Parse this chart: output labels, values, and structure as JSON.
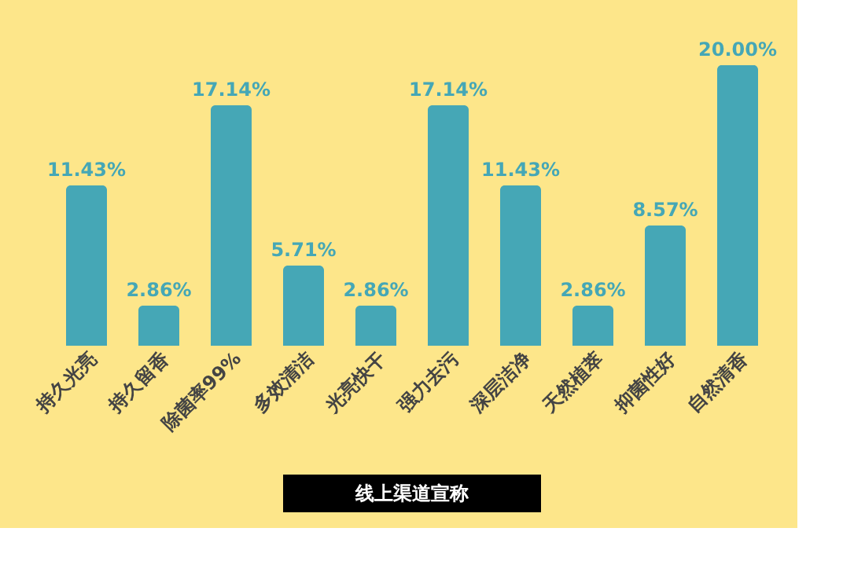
{
  "chart_data": {
    "type": "bar",
    "title": "线上渠道宣称",
    "categories": [
      "持久光亮",
      "持久留香",
      "除菌率99%",
      "多效清洁",
      "光亮快干",
      "强力去污",
      "深层洁净",
      "天然植萃",
      "抑菌性好",
      "自然清香"
    ],
    "values": [
      11.43,
      2.86,
      17.14,
      5.71,
      2.86,
      17.14,
      11.43,
      2.86,
      8.57,
      20.0
    ],
    "value_labels": [
      "11.43%",
      "2.86%",
      "17.14%",
      "5.71%",
      "2.86%",
      "17.14%",
      "11.43%",
      "2.86%",
      "8.57%",
      "20.00%"
    ],
    "color": "#45a7b6"
  }
}
